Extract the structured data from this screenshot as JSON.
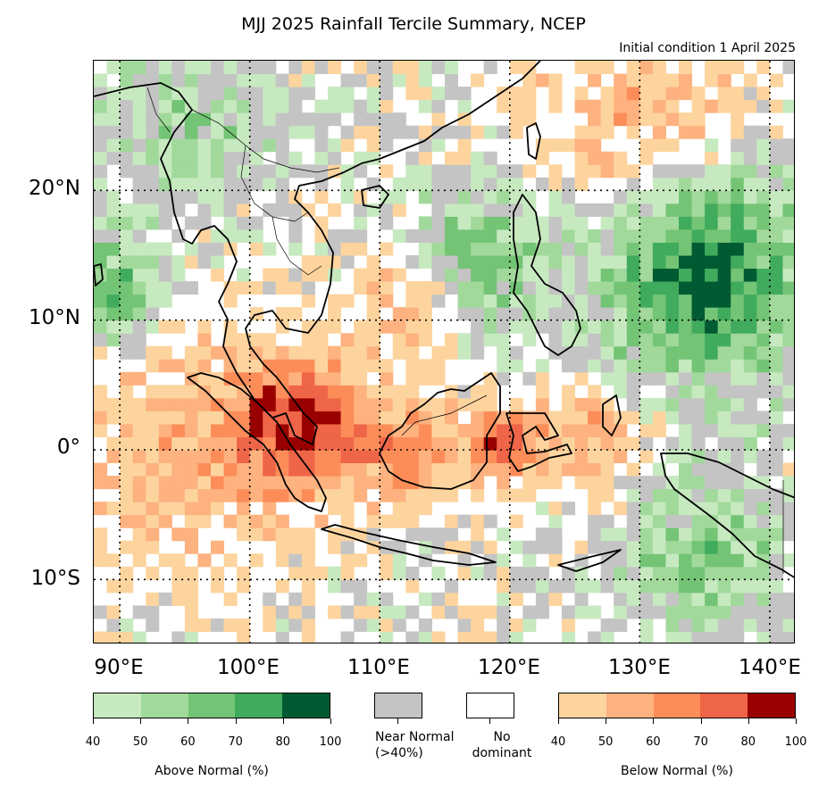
{
  "title": "MJJ 2025 Rainfall Tercile Summary, NCEP",
  "subtitle": "Initial condition 1 April 2025",
  "map": {
    "lon_range": [
      88,
      142
    ],
    "lat_range": [
      -15,
      30
    ],
    "lat_labels": [
      "20°N",
      "10°N",
      "0°",
      "10°S"
    ],
    "lat_values": [
      20,
      10,
      0,
      -10
    ],
    "lon_labels": [
      "90°E",
      "100°E",
      "110°E",
      "120°E",
      "130°E",
      "140°E"
    ],
    "lon_values": [
      90,
      100,
      110,
      120,
      130,
      140
    ],
    "gridlines": "dotted"
  },
  "legend": {
    "above": {
      "caption": "Above Normal (%)",
      "ticks": [
        "40",
        "50",
        "60",
        "70",
        "80",
        "100"
      ],
      "colors": [
        "#c7e9c0",
        "#a1d99b",
        "#74c476",
        "#41ab5d",
        "#005a32"
      ]
    },
    "near": {
      "caption_line1": "Near Normal",
      "caption_line2": "(>40%)",
      "color": "#c4c4c4"
    },
    "none": {
      "caption_line1": "No",
      "caption_line2": "dominant",
      "color": "#ffffff"
    },
    "below": {
      "caption": "Below Normal (%)",
      "ticks": [
        "40",
        "50",
        "60",
        "70",
        "80",
        "100"
      ],
      "colors": [
        "#fdd49e",
        "#fdb27f",
        "#fc8d59",
        "#ef6548",
        "#990000"
      ]
    }
  }
}
